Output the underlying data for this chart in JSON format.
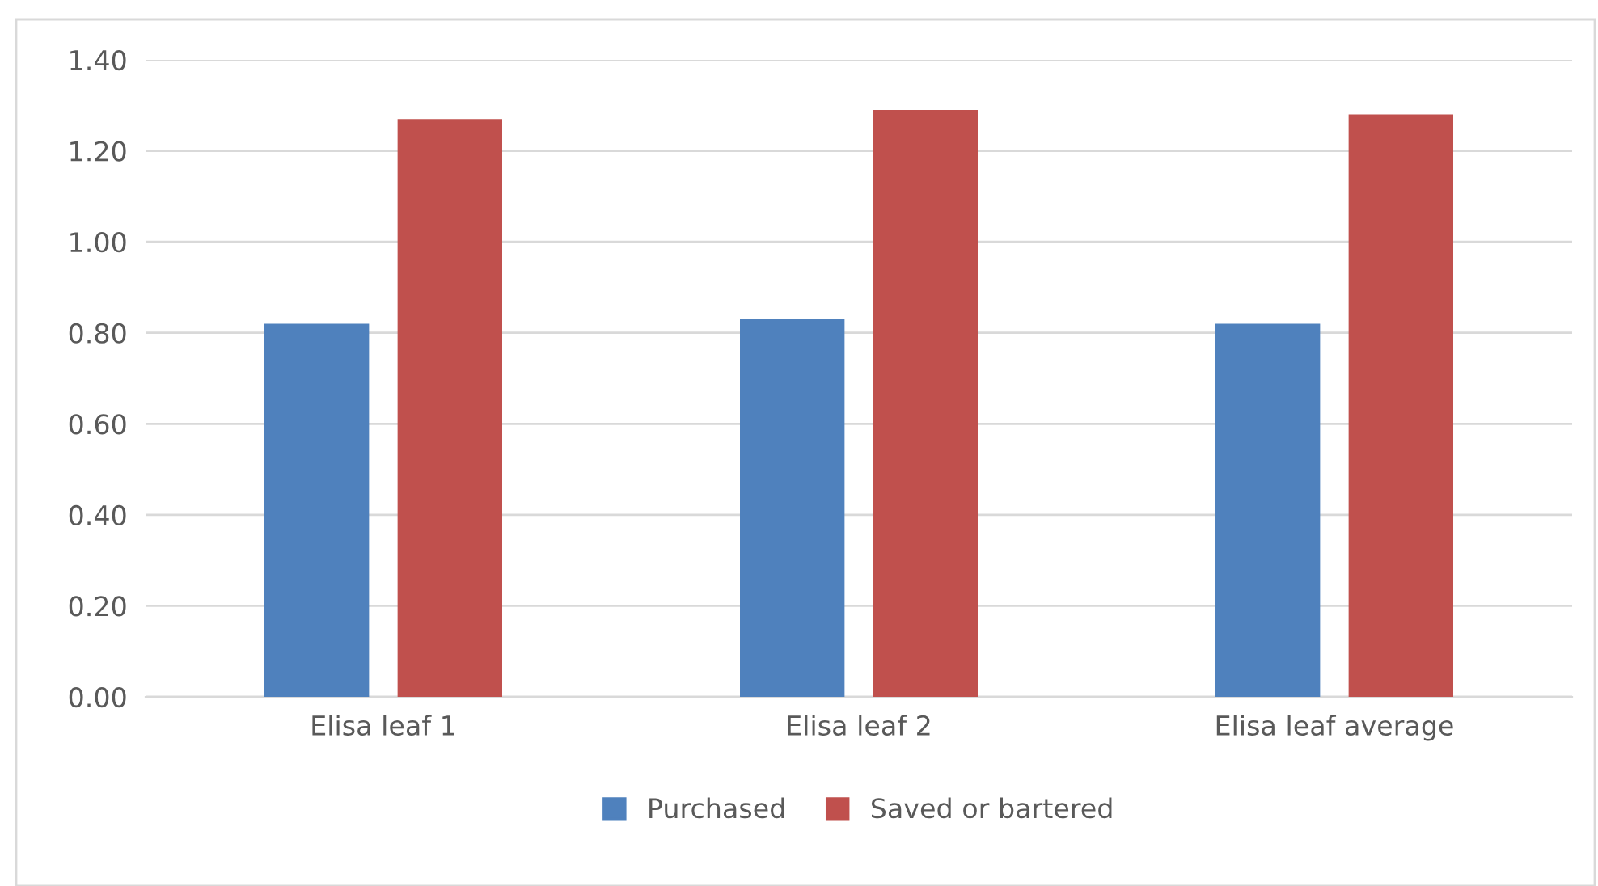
{
  "chart_data": {
    "type": "bar",
    "categories": [
      "Elisa leaf 1",
      "Elisa leaf 2",
      "Elisa leaf average"
    ],
    "series": [
      {
        "name": "Purchased",
        "color": "#4f81bd",
        "values": [
          0.82,
          0.83,
          0.82
        ]
      },
      {
        "name": "Saved or bartered",
        "color": "#c0504d",
        "values": [
          1.27,
          1.29,
          1.28
        ]
      }
    ],
    "ylim": [
      0,
      1.4
    ],
    "yticks": [
      {
        "value": 0,
        "label": "0.00"
      },
      {
        "value": 0.2,
        "label": "0.20"
      },
      {
        "value": 0.4,
        "label": "0.40"
      },
      {
        "value": 0.6,
        "label": "0.60"
      },
      {
        "value": 0.8,
        "label": "0.80"
      },
      {
        "value": 1.0,
        "label": "1.00"
      },
      {
        "value": 1.2,
        "label": "1.20"
      },
      {
        "value": 1.4,
        "label": "1.40"
      }
    ],
    "grid": "y",
    "legend": "bottom"
  }
}
